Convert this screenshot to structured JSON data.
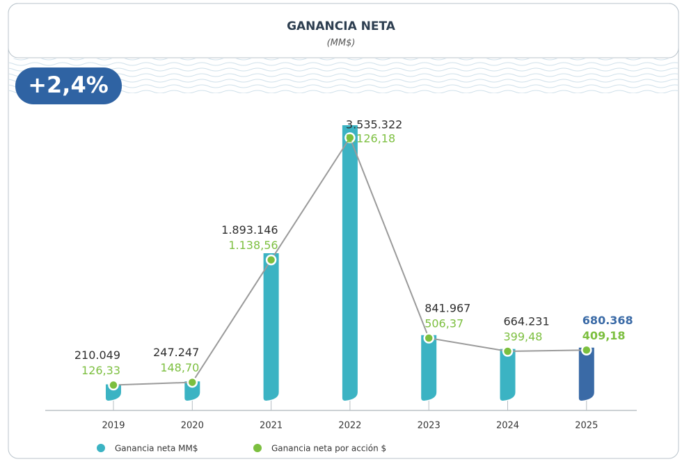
{
  "chart_data": {
    "type": "bar",
    "title": "GANANCIA NETA",
    "subtitle": "(MM$)",
    "badge": "+2,4%",
    "categories": [
      "2019",
      "2020",
      "2021",
      "2022",
      "2023",
      "2024",
      "2025"
    ],
    "series": [
      {
        "name": "Ganancia neta MM$",
        "color": "#3bb3c3",
        "colors": [
          "#3bb3c3",
          "#3bb3c3",
          "#3bb3c3",
          "#3bb3c3",
          "#3bb3c3",
          "#3bb3c3",
          "#3a6aa6"
        ],
        "values": [
          210049,
          247247,
          1893146,
          3535322,
          841967,
          664231,
          680368
        ],
        "value_labels": [
          "210.049",
          "247.247",
          "1.893.146",
          "3.535.322",
          "841.967",
          "664.231",
          "680.368"
        ]
      },
      {
        "name": "Ganancia neta por acción $",
        "color": "#7cbf3f",
        "type": "line",
        "axis": "y2",
        "values": [
          126.33,
          148.7,
          1138.56,
          2126.18,
          506.37,
          399.48,
          409.18
        ],
        "value_labels": [
          "126,33",
          "148,70",
          "1.138,56",
          "2.126,18",
          "506,37",
          "399,48",
          "409,18"
        ]
      }
    ]
  }
}
